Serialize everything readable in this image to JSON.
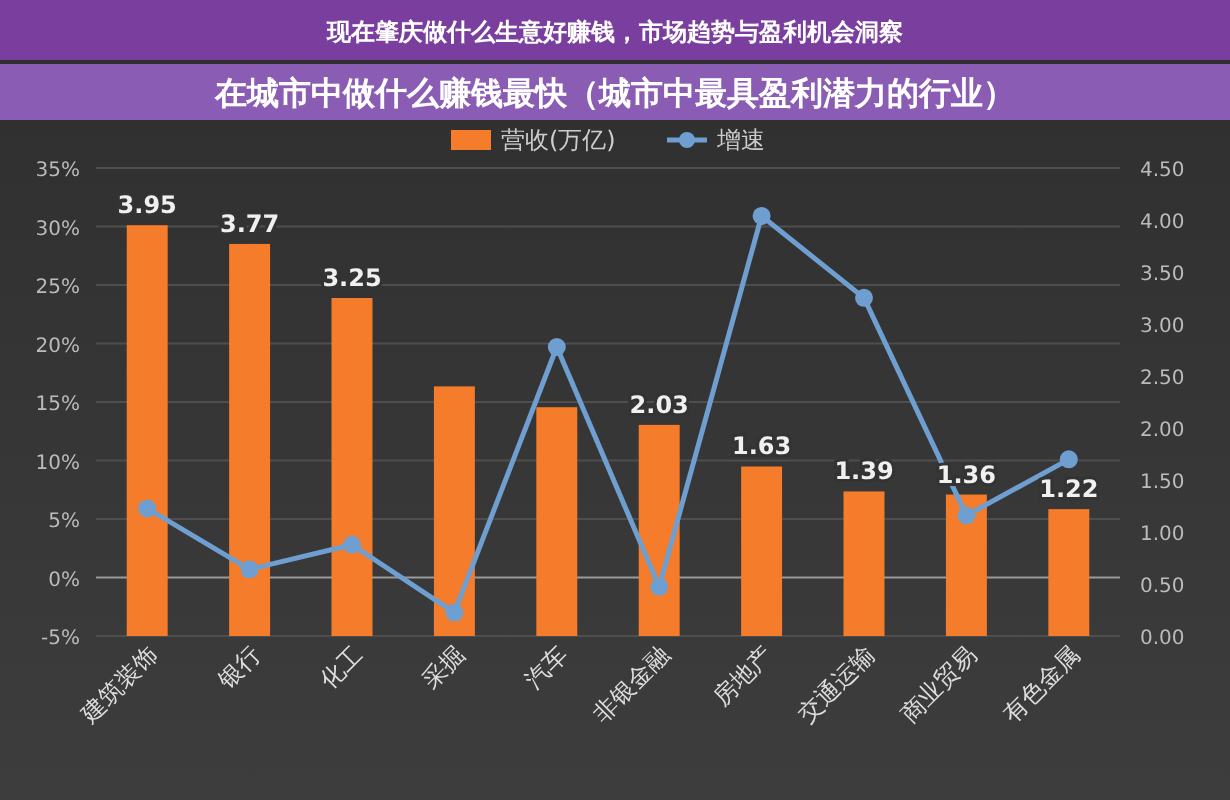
{
  "chart_data": {
    "type": "bar",
    "title": "现在肇庆做什么生意好赚钱，市场趋势与盈利机会洞察",
    "subtitle": "在城市中做什么赚钱最快（城市中最具盈利潜力的行业）",
    "categories": [
      "建筑装饰",
      "银行",
      "化工",
      "采掘",
      "汽车",
      "非银金融",
      "房地产",
      "交通运输",
      "商业贸易",
      "有色金属"
    ],
    "series": [
      {
        "name": "营收(万亿)",
        "axis": "y2",
        "color": "#f47c2a",
        "values": [
          3.95,
          3.77,
          3.25,
          2.4,
          2.2,
          2.03,
          1.63,
          1.39,
          1.36,
          1.22
        ],
        "value_labels": [
          "3.95",
          "3.77",
          "3.25",
          null,
          null,
          "2.03",
          "1.63",
          "1.39",
          "1.36",
          "1.22"
        ]
      },
      {
        "name": "增速",
        "type": "line",
        "color": "#6f9fd0",
        "marker": "circle",
        "values": [
          5.9,
          0.7,
          2.8,
          -3.0,
          19.7,
          -0.8,
          30.9,
          23.9,
          5.3,
          10.1
        ]
      }
    ],
    "ylim": [
      -5,
      35
    ],
    "yticks": [
      {
        "value": -5,
        "label": "-5%"
      },
      {
        "value": 0,
        "label": "0%"
      },
      {
        "value": 5,
        "label": "5%"
      },
      {
        "value": 10,
        "label": "10%"
      },
      {
        "value": 15,
        "label": "15%"
      },
      {
        "value": 20,
        "label": "20%"
      },
      {
        "value": 25,
        "label": "25%"
      },
      {
        "value": 30,
        "label": "30%"
      },
      {
        "value": 35,
        "label": "35%"
      }
    ],
    "y2lim": [
      0,
      4.5
    ],
    "y2ticks": [
      {
        "value": 0,
        "label": "0.00"
      },
      {
        "value": 0.5,
        "label": "0.50"
      },
      {
        "value": 1,
        "label": "1.00"
      },
      {
        "value": 1.5,
        "label": "1.50"
      },
      {
        "value": 2,
        "label": "2.00"
      },
      {
        "value": 2.5,
        "label": "2.50"
      },
      {
        "value": 3,
        "label": "3.00"
      },
      {
        "value": 3.5,
        "label": "3.50"
      },
      {
        "value": 4,
        "label": "4.00"
      },
      {
        "value": 4.5,
        "label": "4.50"
      }
    ],
    "grid": "y",
    "legend": "top"
  }
}
